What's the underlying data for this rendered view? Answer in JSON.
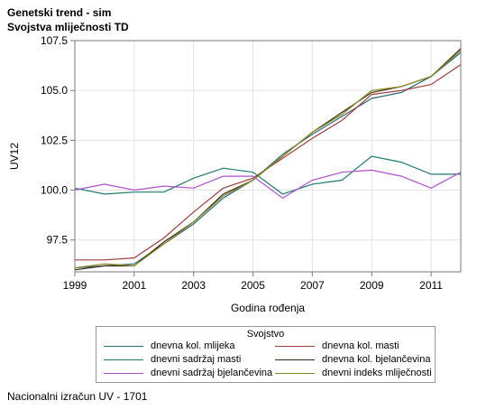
{
  "titles": {
    "line1": "Genetski trend - sim",
    "line2": "Svojstva mliječnosti TD"
  },
  "footer": "Nacionalni izračun UV - 1701",
  "chart_data": {
    "type": "line",
    "title": "Genetski trend - sim",
    "subtitle": "Svojstva mliječnosti TD",
    "xlabel": "Godina rođenja",
    "ylabel": "UV12",
    "xlim": [
      1999,
      2012
    ],
    "ylim": [
      95.9,
      107.5
    ],
    "x_ticks": [
      1999,
      2001,
      2003,
      2005,
      2007,
      2009,
      2011
    ],
    "x_tick_labels": [
      "1999",
      "2001",
      "2003",
      "2005",
      "2007",
      "2009",
      "2011"
    ],
    "y_ticks": [
      97.5,
      100.0,
      102.5,
      105.0,
      107.5
    ],
    "y_tick_labels": [
      "97.5",
      "100.0",
      "102.5",
      "105.0",
      "107.5"
    ],
    "grid": true,
    "legend_title": "Svojstvo",
    "legend_position": "bottom",
    "x": [
      1999,
      2000,
      2001,
      2002,
      2003,
      2004,
      2005,
      2006,
      2007,
      2008,
      2009,
      2010,
      2011,
      2012
    ],
    "series": [
      {
        "name": "dnevna kol. mlijeka",
        "color": "#2a6f80",
        "values": [
          96.1,
          96.2,
          96.3,
          97.3,
          98.3,
          99.6,
          100.5,
          101.8,
          102.8,
          103.7,
          104.6,
          104.9,
          105.7,
          106.9
        ]
      },
      {
        "name": "dnevna kol. masti",
        "color": "#a03c3c",
        "values": [
          96.5,
          96.5,
          96.6,
          97.6,
          98.9,
          100.1,
          100.6,
          101.6,
          102.6,
          103.5,
          104.8,
          105.0,
          105.3,
          106.3
        ]
      },
      {
        "name": "dnevni sadržaj masti",
        "color": "#1e7a6e",
        "values": [
          100.1,
          99.8,
          99.9,
          99.9,
          100.6,
          101.1,
          100.9,
          99.8,
          100.3,
          100.5,
          101.7,
          101.4,
          100.8,
          100.8
        ]
      },
      {
        "name": "dnevna kol. bjelančevina",
        "color": "#3f2a12",
        "values": [
          96.0,
          96.2,
          96.2,
          97.4,
          98.4,
          99.8,
          100.5,
          101.7,
          102.9,
          103.9,
          104.9,
          105.2,
          105.7,
          107.1
        ]
      },
      {
        "name": "dnevni sadržaj bjelančevina",
        "color": "#b04fd0",
        "values": [
          100.0,
          100.3,
          100.0,
          100.2,
          100.1,
          100.7,
          100.7,
          99.6,
          100.5,
          100.9,
          101.0,
          100.7,
          100.1,
          100.9
        ]
      },
      {
        "name": "dnevni indeks mliječnosti",
        "color": "#8a8a20",
        "values": [
          96.1,
          96.3,
          96.2,
          97.3,
          98.4,
          99.7,
          100.5,
          101.7,
          102.9,
          103.8,
          105.0,
          105.2,
          105.7,
          107.0
        ]
      }
    ]
  }
}
